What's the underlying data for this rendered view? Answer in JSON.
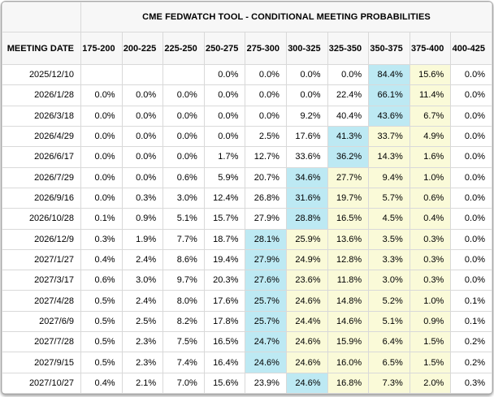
{
  "colors": {
    "highlight_cyan": "#bde9f3",
    "highlight_yellow": "#fafad8",
    "header_background": "#f7f7f7",
    "grid_border": "#d9d9d9"
  },
  "table": {
    "title": "CME FEDWATCH TOOL - CONDITIONAL MEETING PROBABILITIES",
    "date_header": "MEETING DATE",
    "rate_headers": [
      "175-200",
      "200-225",
      "225-250",
      "250-275",
      "275-300",
      "300-325",
      "325-350",
      "350-375",
      "375-400",
      "400-425"
    ],
    "rows": [
      {
        "date": "2025/12/10",
        "values": [
          "",
          "",
          "",
          "0.0%",
          "0.0%",
          "0.0%",
          "0.0%",
          "84.4%",
          "15.6%",
          "0.0%"
        ],
        "highlights": [
          "",
          "",
          "",
          "",
          "",
          "",
          "",
          "cyan",
          "yellow",
          ""
        ]
      },
      {
        "date": "2026/1/28",
        "values": [
          "0.0%",
          "0.0%",
          "0.0%",
          "0.0%",
          "0.0%",
          "0.0%",
          "22.4%",
          "66.1%",
          "11.4%",
          "0.0%"
        ],
        "highlights": [
          "",
          "",
          "",
          "",
          "",
          "",
          "",
          "cyan",
          "yellow",
          ""
        ]
      },
      {
        "date": "2026/3/18",
        "values": [
          "0.0%",
          "0.0%",
          "0.0%",
          "0.0%",
          "0.0%",
          "9.2%",
          "40.4%",
          "43.6%",
          "6.7%",
          "0.0%"
        ],
        "highlights": [
          "",
          "",
          "",
          "",
          "",
          "",
          "",
          "cyan",
          "yellow",
          ""
        ]
      },
      {
        "date": "2026/4/29",
        "values": [
          "0.0%",
          "0.0%",
          "0.0%",
          "0.0%",
          "2.5%",
          "17.6%",
          "41.3%",
          "33.7%",
          "4.9%",
          "0.0%"
        ],
        "highlights": [
          "",
          "",
          "",
          "",
          "",
          "",
          "cyan",
          "yellow",
          "yellow",
          ""
        ]
      },
      {
        "date": "2026/6/17",
        "values": [
          "0.0%",
          "0.0%",
          "0.0%",
          "1.7%",
          "12.7%",
          "33.6%",
          "36.2%",
          "14.3%",
          "1.6%",
          "0.0%"
        ],
        "highlights": [
          "",
          "",
          "",
          "",
          "",
          "",
          "cyan",
          "yellow",
          "yellow",
          ""
        ]
      },
      {
        "date": "2026/7/29",
        "values": [
          "0.0%",
          "0.0%",
          "0.6%",
          "5.9%",
          "20.7%",
          "34.6%",
          "27.7%",
          "9.4%",
          "1.0%",
          "0.0%"
        ],
        "highlights": [
          "",
          "",
          "",
          "",
          "",
          "cyan",
          "yellow",
          "yellow",
          "yellow",
          ""
        ]
      },
      {
        "date": "2026/9/16",
        "values": [
          "0.0%",
          "0.3%",
          "3.0%",
          "12.4%",
          "26.8%",
          "31.6%",
          "19.7%",
          "5.7%",
          "0.6%",
          "0.0%"
        ],
        "highlights": [
          "",
          "",
          "",
          "",
          "",
          "cyan",
          "yellow",
          "yellow",
          "yellow",
          ""
        ]
      },
      {
        "date": "2026/10/28",
        "values": [
          "0.1%",
          "0.9%",
          "5.1%",
          "15.7%",
          "27.9%",
          "28.8%",
          "16.5%",
          "4.5%",
          "0.4%",
          "0.0%"
        ],
        "highlights": [
          "",
          "",
          "",
          "",
          "",
          "cyan",
          "yellow",
          "yellow",
          "yellow",
          ""
        ]
      },
      {
        "date": "2026/12/9",
        "values": [
          "0.3%",
          "1.9%",
          "7.7%",
          "18.7%",
          "28.1%",
          "25.9%",
          "13.6%",
          "3.5%",
          "0.3%",
          "0.0%"
        ],
        "highlights": [
          "",
          "",
          "",
          "",
          "cyan",
          "yellow",
          "yellow",
          "yellow",
          "yellow",
          ""
        ]
      },
      {
        "date": "2027/1/27",
        "values": [
          "0.4%",
          "2.4%",
          "8.6%",
          "19.4%",
          "27.9%",
          "24.9%",
          "12.8%",
          "3.3%",
          "0.3%",
          "0.0%"
        ],
        "highlights": [
          "",
          "",
          "",
          "",
          "cyan",
          "yellow",
          "yellow",
          "yellow",
          "yellow",
          ""
        ]
      },
      {
        "date": "2027/3/17",
        "values": [
          "0.6%",
          "3.0%",
          "9.7%",
          "20.3%",
          "27.6%",
          "23.6%",
          "11.8%",
          "3.0%",
          "0.3%",
          "0.0%"
        ],
        "highlights": [
          "",
          "",
          "",
          "",
          "cyan",
          "yellow",
          "yellow",
          "yellow",
          "yellow",
          ""
        ]
      },
      {
        "date": "2027/4/28",
        "values": [
          "0.5%",
          "2.4%",
          "8.0%",
          "17.6%",
          "25.7%",
          "24.6%",
          "14.8%",
          "5.2%",
          "1.0%",
          "0.1%"
        ],
        "highlights": [
          "",
          "",
          "",
          "",
          "cyan",
          "yellow",
          "yellow",
          "yellow",
          "yellow",
          ""
        ]
      },
      {
        "date": "2027/6/9",
        "values": [
          "0.5%",
          "2.5%",
          "8.2%",
          "17.8%",
          "25.7%",
          "24.4%",
          "14.6%",
          "5.1%",
          "0.9%",
          "0.1%"
        ],
        "highlights": [
          "",
          "",
          "",
          "",
          "cyan",
          "yellow",
          "yellow",
          "yellow",
          "yellow",
          ""
        ]
      },
      {
        "date": "2027/7/28",
        "values": [
          "0.5%",
          "2.3%",
          "7.5%",
          "16.5%",
          "24.7%",
          "24.6%",
          "15.9%",
          "6.4%",
          "1.5%",
          "0.2%"
        ],
        "highlights": [
          "",
          "",
          "",
          "",
          "cyan",
          "yellow",
          "yellow",
          "yellow",
          "yellow",
          ""
        ]
      },
      {
        "date": "2027/9/15",
        "values": [
          "0.5%",
          "2.3%",
          "7.4%",
          "16.4%",
          "24.6%",
          "24.6%",
          "16.0%",
          "6.5%",
          "1.5%",
          "0.2%"
        ],
        "highlights": [
          "",
          "",
          "",
          "",
          "cyan",
          "yellow",
          "yellow",
          "yellow",
          "yellow",
          ""
        ]
      },
      {
        "date": "2027/10/27",
        "values": [
          "0.4%",
          "2.1%",
          "7.0%",
          "15.6%",
          "23.9%",
          "24.6%",
          "16.8%",
          "7.3%",
          "2.0%",
          "0.3%"
        ],
        "highlights": [
          "",
          "",
          "",
          "",
          "",
          "cyan",
          "yellow",
          "yellow",
          "yellow",
          ""
        ]
      }
    ]
  }
}
